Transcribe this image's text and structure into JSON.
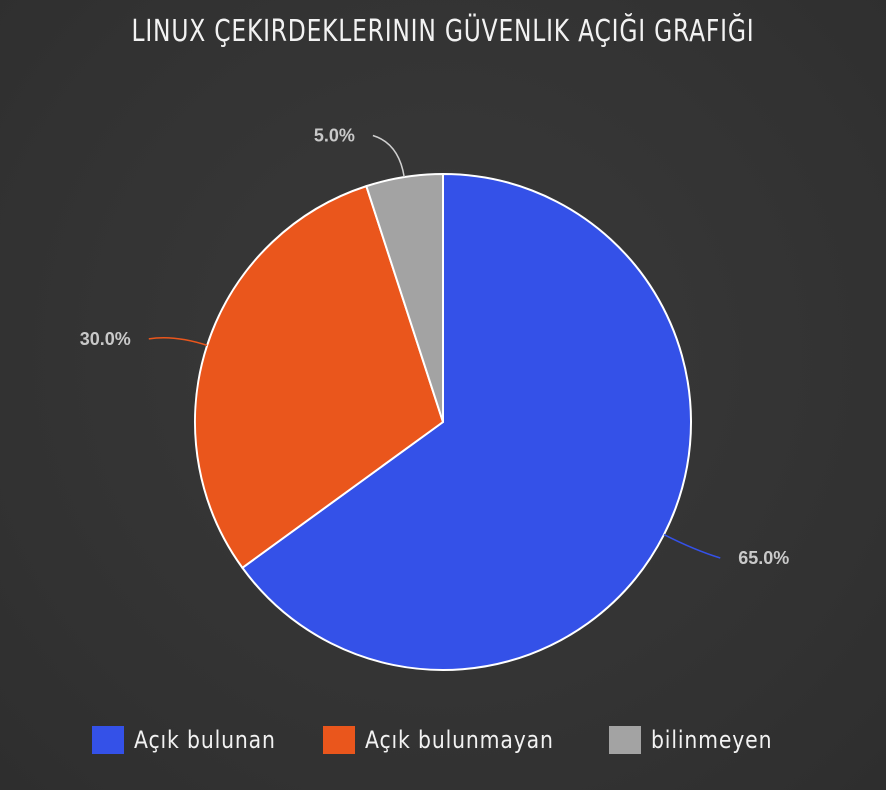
{
  "chart_data": {
    "type": "pie",
    "title": "LINUX ÇEKIRDEKLERININ GÜVENLIK AÇIĞI GRAFIĞI",
    "categories": [
      "Açık bulunan",
      "Açık bulunmayan",
      "bilinmeyen"
    ],
    "values": [
      65.0,
      30.0,
      5.0
    ],
    "labels": [
      "65.0%",
      "30.0%",
      "5.0%"
    ],
    "colors": [
      "#3451e8",
      "#ea561c",
      "#a3a3a3"
    ],
    "legend": "bottom",
    "start_angle": "top, clockwise"
  }
}
